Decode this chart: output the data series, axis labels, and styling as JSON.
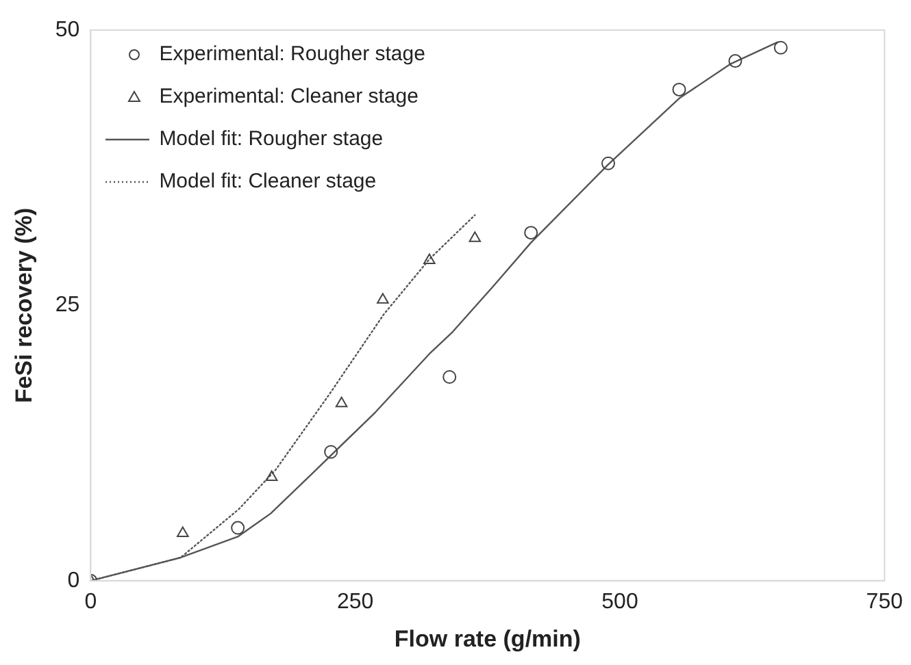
{
  "chart_data": {
    "type": "scatter",
    "xlabel": "Flow rate (g/min)",
    "ylabel": "FeSi recovery (%)",
    "xlim": [
      0,
      750
    ],
    "xticks": [
      0,
      250,
      500,
      750
    ],
    "ylim": [
      0,
      50
    ],
    "yticks": [
      0,
      25,
      50
    ],
    "grid": false,
    "legend": "top left",
    "series": [
      {
        "name": "Experimental: Rougher stage",
        "marker": "circle",
        "color": "#444444",
        "x": [
          0,
          139,
          227,
          339,
          416,
          489,
          556,
          609,
          652
        ],
        "values": [
          0,
          4.8,
          11.7,
          18.5,
          31.6,
          37.9,
          44.6,
          47.2,
          48.4
        ]
      },
      {
        "name": "Experimental: Cleaner stage",
        "marker": "triangle",
        "color": "#444444",
        "x": [
          0,
          87,
          171,
          237,
          276,
          320,
          363
        ],
        "values": [
          0,
          4.3,
          9.4,
          16.1,
          25.5,
          29.1,
          31.1
        ]
      },
      {
        "name": "Model fit: Rougher stage",
        "type": "line",
        "marker": "none",
        "line_style": "solid",
        "color": "#555555",
        "x": [
          0,
          85,
          139,
          170,
          209,
          269,
          320,
          342,
          380,
          416,
          489,
          556,
          604,
          649
        ],
        "values": [
          0,
          2.1,
          4.0,
          6.1,
          9.7,
          15.3,
          20.6,
          22.6,
          26.7,
          30.7,
          37.8,
          43.8,
          46.9,
          48.9
        ]
      },
      {
        "name": "Model fit: Cleaner stage",
        "type": "line",
        "marker": "none",
        "line_style": "dotted",
        "color": "#555555",
        "x": [
          0,
          85,
          140,
          175,
          226,
          277,
          320,
          363
        ],
        "values": [
          0,
          2.1,
          6.5,
          10.1,
          17.0,
          24.2,
          29.2,
          33.2
        ]
      }
    ]
  }
}
